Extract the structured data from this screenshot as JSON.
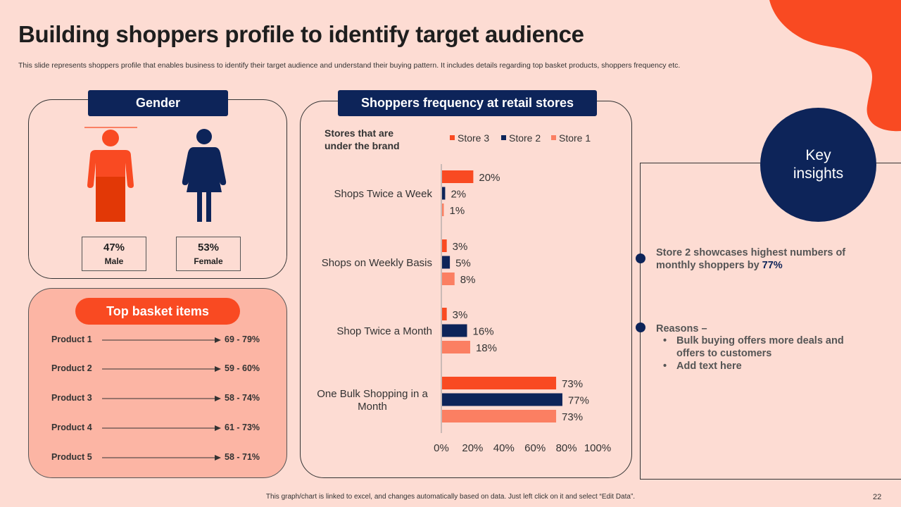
{
  "header": {
    "title": "Building shoppers profile to identify target audience",
    "subtitle": "This slide represents shoppers profile that enables business to identify their target audience and understand their buying pattern. It includes details regarding top basket products, shoppers frequency etc."
  },
  "gender": {
    "heading": "Gender",
    "male": {
      "value": "47%",
      "label": "Male",
      "color": "#f94a22"
    },
    "female": {
      "value": "53%",
      "label": "Female",
      "color": "#0d2459"
    }
  },
  "basket": {
    "heading": "Top basket items",
    "items": [
      {
        "name": "Product 1",
        "range": "69 - 79%"
      },
      {
        "name": "Product 2",
        "range": "59 - 60%"
      },
      {
        "name": "Product 3",
        "range": "58 - 74%"
      },
      {
        "name": "Product 4",
        "range": "61 - 73%"
      },
      {
        "name": "Product 5",
        "range": "58 - 71%"
      }
    ]
  },
  "frequency": {
    "heading": "Shoppers frequency at retail stores",
    "brand_label_line1": "Stores that are",
    "brand_label_line2": "under the brand"
  },
  "chart_data": {
    "type": "bar",
    "orientation": "horizontal",
    "categories": [
      "Shops Twice a Week",
      "Shops on Weekly Basis",
      "Shop Twice a Month",
      "One Bulk Shopping in a Month"
    ],
    "series": [
      {
        "name": "Store 3",
        "color": "#f94a22",
        "values": [
          20,
          3,
          3,
          73
        ]
      },
      {
        "name": "Store 2",
        "color": "#0d2459",
        "values": [
          2,
          5,
          16,
          77
        ]
      },
      {
        "name": "Store 1",
        "color": "#fb7f62",
        "values": [
          1,
          8,
          18,
          73
        ]
      }
    ],
    "xlim": [
      0,
      100
    ],
    "x_ticks": [
      "0%",
      "20%",
      "40%",
      "60%",
      "80%",
      "100%"
    ],
    "legend": "top",
    "grid": false,
    "value_suffix": "%"
  },
  "insights": {
    "heading_line1": "Key",
    "heading_line2": "insights",
    "point1_line1": "Store 2 showcases highest numbers of",
    "point1_line2_prefix": "monthly shoppers by ",
    "point1_highlight": "77%",
    "point2_title": "Reasons –",
    "point2_bullets": [
      "Bulk buying offers more deals and",
      "offers to customers",
      "Add text here"
    ]
  },
  "footer": {
    "note": "This graph/chart is linked to excel, and changes automatically based on data. Just left click on it and select “Edit Data”.",
    "page": "22"
  }
}
